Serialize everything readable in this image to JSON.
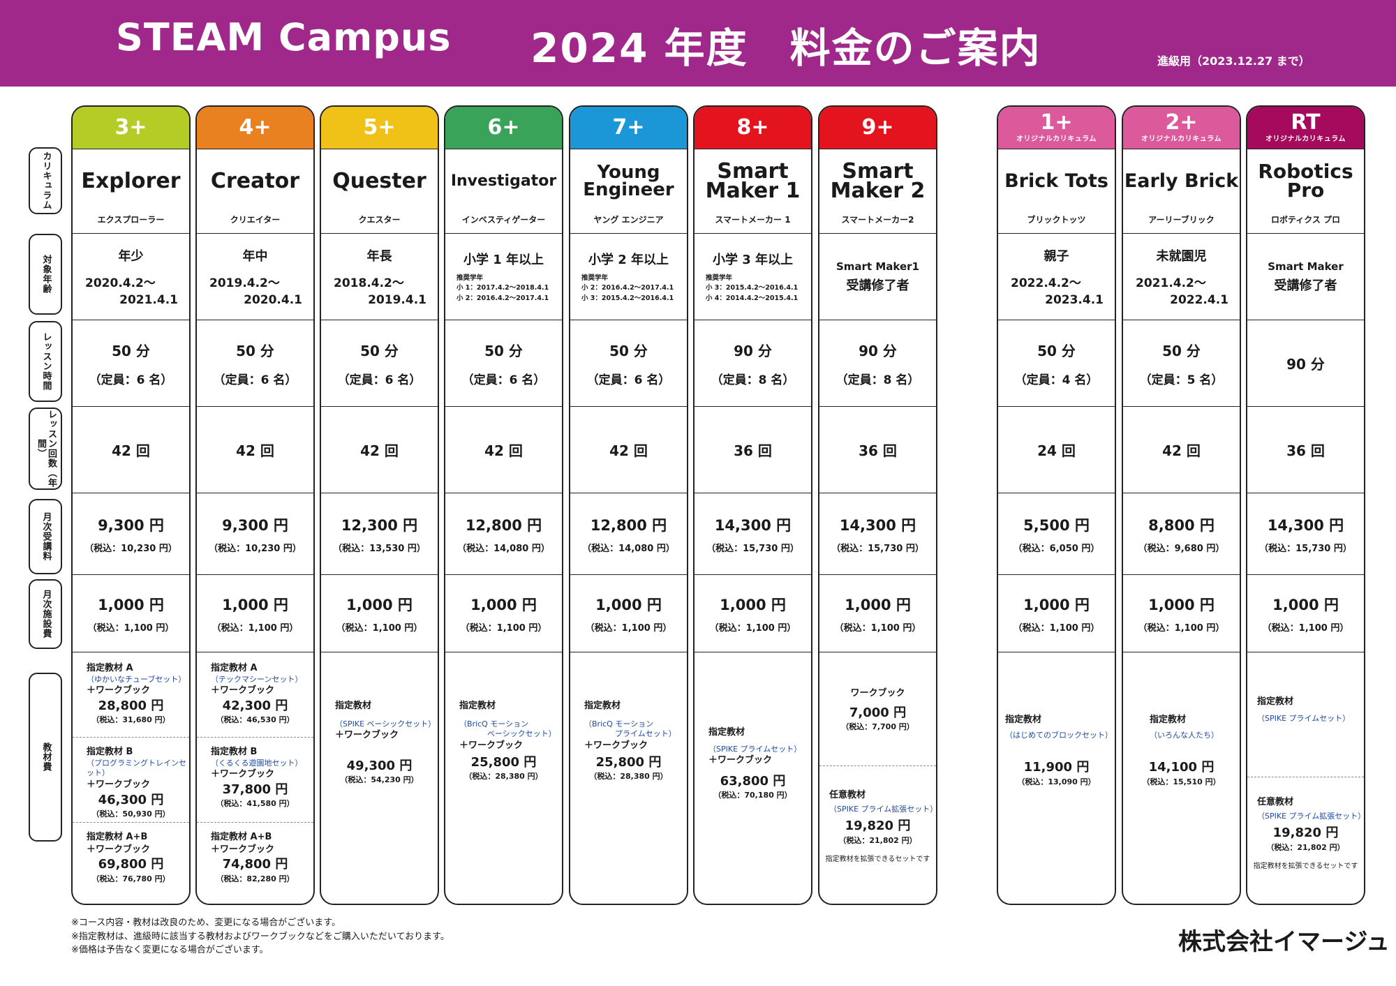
{
  "header": {
    "title": "STEAM Campus",
    "title2": "2024 年度　料金のご案内",
    "note": "進級用（2023.12.27 まで）",
    "bg_color": "#a0288a"
  },
  "row_labels": [
    "カリキュラム",
    "対象年齢",
    "レッスン時間",
    "レッスン回数（年間）",
    "月次受講料",
    "月次施設費",
    "教材費"
  ],
  "columns": [
    {
      "age": "3+",
      "sub": "",
      "color": "#b5cc26",
      "name": "Explorer",
      "kana": "エクスプローラー",
      "age_label": "年少",
      "d1": "2020.4.2〜",
      "d2": "2021.4.1",
      "len": "50 分",
      "cap": "（定員：6 名）",
      "count": "42 回",
      "fee": "9,300 円",
      "fee_tax": "（税込：10,230 円）",
      "fac": "1,000 円",
      "fac_tax": "（税込：1,100 円）",
      "mA_label": "指定教材 A",
      "mA_sub": "（ゆかいなチューブセット）",
      "mA_wb": "＋ワークブック",
      "mA_price": "28,800 円",
      "mA_tax": "（税込：31,680 円）",
      "mB_label": "指定教材 B",
      "mB_sub": "（プログラミングトレインセット）",
      "mB_wb": "＋ワークブック",
      "mB_price": "46,300 円",
      "mB_tax": "（税込：50,930 円）",
      "mC_label": "指定教材 A+B",
      "mC_wb": "＋ワークブック",
      "mC_price": "69,800 円",
      "mC_tax": "（税込：76,780 円）"
    },
    {
      "age": "4+",
      "sub": "",
      "color": "#e98121",
      "name": "Creator",
      "kana": "クリエイター",
      "age_label": "年中",
      "d1": "2019.4.2〜",
      "d2": "2020.4.1",
      "len": "50 分",
      "cap": "（定員：6 名）",
      "count": "42 回",
      "fee": "9,300 円",
      "fee_tax": "（税込：10,230 円）",
      "fac": "1,000 円",
      "fac_tax": "（税込：1,100 円）",
      "mA_label": "指定教材 A",
      "mA_sub": "（テックマシーンセット）",
      "mA_wb": "＋ワークブック",
      "mA_price": "42,300 円",
      "mA_tax": "（税込：46,530 円）",
      "mB_label": "指定教材 B",
      "mB_sub": "（くるくる遊園地セット）",
      "mB_wb": "＋ワークブック",
      "mB_price": "37,800 円",
      "mB_tax": "（税込：41,580 円）",
      "mC_label": "指定教材 A+B",
      "mC_wb": "＋ワークブック",
      "mC_price": "74,800 円",
      "mC_tax": "（税込：82,280 円）"
    },
    {
      "age": "5+",
      "sub": "",
      "color": "#f0c117",
      "name": "Quester",
      "kana": "クエスター",
      "age_label": "年長",
      "d1": "2018.4.2〜",
      "d2": "2019.4.1",
      "len": "50 分",
      "cap": "（定員：6 名）",
      "count": "42 回",
      "fee": "12,300 円",
      "fee_tax": "（税込：13,530 円）",
      "fac": "1,000 円",
      "fac_tax": "（税込：1,100 円）",
      "m_label": "指定教材",
      "m_sub": "（SPIKE ベーシックセット）",
      "m_wb": "＋ワークブック",
      "m_price": "49,300 円",
      "m_tax": "（税込：54,230 円）"
    },
    {
      "age": "6+",
      "sub": "",
      "color": "#3aa35a",
      "name": "Investigator",
      "kana": "インベスティゲーター",
      "age_label": "小学 1 年以上",
      "rec": "推奨学年",
      "rec1": "小 1：2017.4.2〜2018.4.1",
      "rec2": "小 2：2016.4.2〜2017.4.1",
      "len": "50 分",
      "cap": "（定員：6 名）",
      "count": "42 回",
      "fee": "12,800 円",
      "fee_tax": "（税込：14,080 円）",
      "fac": "1,000 円",
      "fac_tax": "（税込：1,100 円）",
      "m_label": "指定教材",
      "m_sub": "（BricQ モーション",
      "m_sub2": "ベーシックセット）",
      "m_wb": "＋ワークブック",
      "m_price": "25,800 円",
      "m_tax": "（税込：28,380 円）"
    },
    {
      "age": "7+",
      "sub": "",
      "color": "#1b96d6",
      "name": "Young",
      "name2": "Engineer",
      "kana": "ヤング エンジニア",
      "age_label": "小学 2 年以上",
      "rec": "推奨学年",
      "rec1": "小 2：2016.4.2〜2017.4.1",
      "rec2": "小 3：2015.4.2〜2016.4.1",
      "len": "50 分",
      "cap": "（定員：6 名）",
      "count": "42 回",
      "fee": "12,800 円",
      "fee_tax": "（税込：14,080 円）",
      "fac": "1,000 円",
      "fac_tax": "（税込：1,100 円）",
      "m_label": "指定教材",
      "m_sub": "（BricQ モーション",
      "m_sub2": "プライムセット）",
      "m_wb": "＋ワークブック",
      "m_price": "25,800 円",
      "m_tax": "（税込：28,380 円）"
    },
    {
      "age": "8+",
      "sub": "",
      "color": "#e4141e",
      "name": "Smart",
      "name2": "Maker 1",
      "kana": "スマートメーカー 1",
      "age_label": "小学 3 年以上",
      "rec": "推奨学年",
      "rec1": "小 3：2015.4.2〜2016.4.1",
      "rec2": "小 4：2014.4.2〜2015.4.1",
      "len": "90 分",
      "cap": "（定員：8 名）",
      "count": "36 回",
      "fee": "14,300 円",
      "fee_tax": "（税込：15,730 円）",
      "fac": "1,000 円",
      "fac_tax": "（税込：1,100 円）",
      "m_label": "指定教材",
      "m_sub": "（SPIKE プライムセット）",
      "m_wb": "＋ワークブック",
      "m_price": "63,800 円",
      "m_tax": "（税込：70,180 円）"
    },
    {
      "age": "9+",
      "sub": "",
      "color": "#e4141e",
      "name": "Smart",
      "name2": "Maker 2",
      "kana": "スマートメーカー2",
      "age_label": "Smart Maker1",
      "age_label2": "受講修了者",
      "len": "90 分",
      "cap": "（定員：8 名）",
      "count": "36 回",
      "fee": "14,300 円",
      "fee_tax": "（税込：15,730 円）",
      "fac": "1,000 円",
      "fac_tax": "（税込：1,100 円）",
      "wb_label": "ワークブック",
      "wb_price": "7,000 円",
      "wb_tax": "（税込：7,700 円）",
      "opt_label": "任意教材",
      "opt_sub": "（SPIKE プライム拡張セット）",
      "opt_price": "19,820 円",
      "opt_tax": "（税込：21,802 円）",
      "opt_note": "指定教材を拡張できるセットです"
    },
    {
      "age": "1+",
      "sub": "オリジナルカリキュラム",
      "color": "#dc5a9b",
      "name": "Brick Tots",
      "kana": "ブリックトッツ",
      "age_label": "親子",
      "d1": "2022.4.2〜",
      "d2": "2023.4.1",
      "len": "50 分",
      "cap": "（定員：4 名）",
      "count": "24 回",
      "fee": "5,500 円",
      "fee_tax": "（税込：6,050 円）",
      "fac": "1,000 円",
      "fac_tax": "（税込：1,100 円）",
      "m_label": "指定教材",
      "m_sub": "（はじめてのブロックセット）",
      "m_price": "11,900 円",
      "m_tax": "（税込：13,090 円）"
    },
    {
      "age": "2+",
      "sub": "オリジナルカリキュラム",
      "color": "#dc5a9b",
      "name": "Early Brick",
      "kana": "アーリーブリック",
      "age_label": "未就園児",
      "d1": "2021.4.2〜",
      "d2": "2022.4.1",
      "len": "50 分",
      "cap": "（定員：5 名）",
      "count": "42 回",
      "fee": "8,800 円",
      "fee_tax": "（税込：9,680 円）",
      "fac": "1,000 円",
      "fac_tax": "（税込：1,100 円）",
      "m_label": "指定教材",
      "m_sub": "（いろんな人たち）",
      "m_price": "14,100 円",
      "m_tax": "（税込：15,510 円）"
    },
    {
      "age": "RT",
      "sub": "オリジナルカリキュラム",
      "color": "#a50a5c",
      "name": "Robotics",
      "name2": "Pro",
      "kana": "ロボティクス プロ",
      "age_label": "Smart Maker",
      "age_label2": "受講修了者",
      "len": "90 分",
      "count": "36 回",
      "fee": "14,300 円",
      "fee_tax": "（税込：15,730 円）",
      "fac": "1,000 円",
      "fac_tax": "（税込：1,100 円）",
      "m_label": "指定教材",
      "m_sub": "（SPIKE プライムセット）",
      "opt_label": "任意教材",
      "opt_sub": "（SPIKE プライム拡張セット）",
      "opt_price": "19,820 円",
      "opt_tax": "（税込：21,802 円）",
      "opt_note": "指定教材を拡張できるセットです"
    }
  ],
  "footer": {
    "lines": [
      "※コース内容・教材は改良のため、変更になる場合がございます。",
      "※指定教材は、進級時に該当する教材およびワークブックなどをご購入いただいております。",
      "※価格は予告なく変更になる場合がございます。"
    ],
    "company": "株式会社イマージュ"
  }
}
